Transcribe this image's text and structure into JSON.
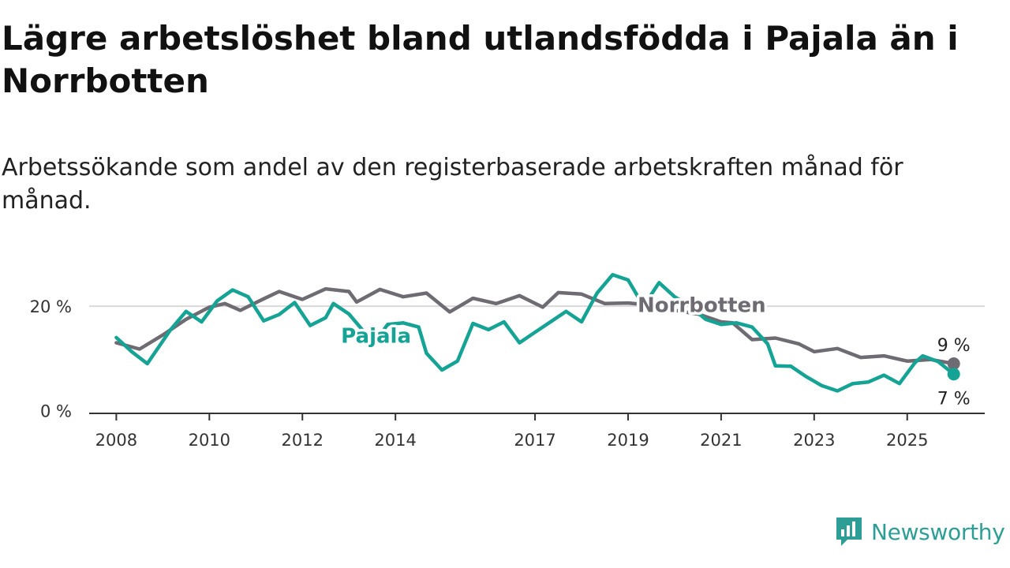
{
  "title": "Lägre arbetslöshet bland utlandsfödda i Pajala än i Norrbotten",
  "subtitle": "Arbetssökande som andel av den registerbaserade arbetskraften månad för månad.",
  "brand": {
    "name": "Newsworthy",
    "icon": "newsworthy-logo-icon",
    "color": "#2d9e96"
  },
  "chart_data": {
    "type": "line",
    "xlabel": "",
    "ylabel": "",
    "x_ticks": [
      "2008",
      "2010",
      "2012",
      "2014",
      "2017",
      "2019",
      "2021",
      "2023",
      "2025"
    ],
    "y_ticks": [
      {
        "value": 0,
        "label": "0 %"
      },
      {
        "value": 20,
        "label": "20 %"
      }
    ],
    "ylim": [
      -0.5,
      26.5
    ],
    "xlim": [
      "2007-06",
      "2026-09"
    ],
    "grid": "horizontal at 20",
    "series": [
      {
        "name": "Norrbotten",
        "color": "#6e6b73",
        "end_label": "9 %",
        "points": [
          [
            "2008-01",
            13.0
          ],
          [
            "2008-07",
            11.8
          ],
          [
            "2009-01",
            14.5
          ],
          [
            "2009-07",
            17.5
          ],
          [
            "2010-01",
            19.8
          ],
          [
            "2010-05",
            20.5
          ],
          [
            "2010-09",
            19.2
          ],
          [
            "2011-03",
            21.4
          ],
          [
            "2011-07",
            22.8
          ],
          [
            "2012-01",
            21.3
          ],
          [
            "2012-07",
            23.3
          ],
          [
            "2013-01",
            22.8
          ],
          [
            "2013-03",
            20.8
          ],
          [
            "2013-09",
            23.2
          ],
          [
            "2014-03",
            21.8
          ],
          [
            "2014-09",
            22.5
          ],
          [
            "2015-03",
            18.9
          ],
          [
            "2015-09",
            21.5
          ],
          [
            "2016-03",
            20.5
          ],
          [
            "2016-09",
            22.0
          ],
          [
            "2017-03",
            19.8
          ],
          [
            "2017-07",
            22.6
          ],
          [
            "2018-01",
            22.3
          ],
          [
            "2018-07",
            20.5
          ],
          [
            "2019-01",
            20.6
          ],
          [
            "2019-07",
            20.2
          ],
          [
            "2020-01",
            19.2
          ],
          [
            "2020-07",
            18.5
          ],
          [
            "2021-01",
            17.0
          ],
          [
            "2021-04",
            16.8
          ],
          [
            "2021-09",
            13.6
          ],
          [
            "2022-03",
            13.9
          ],
          [
            "2022-09",
            12.8
          ],
          [
            "2023-01",
            11.3
          ],
          [
            "2023-07",
            11.9
          ],
          [
            "2024-01",
            10.2
          ],
          [
            "2024-07",
            10.5
          ],
          [
            "2025-01",
            9.5
          ],
          [
            "2025-07",
            9.8
          ],
          [
            "2026-01",
            9.0
          ]
        ]
      },
      {
        "name": "Pajala",
        "color": "#14a394",
        "end_label": "7 %",
        "points": [
          [
            "2008-01",
            14.0
          ],
          [
            "2008-05",
            11.3
          ],
          [
            "2008-09",
            9.0
          ],
          [
            "2009-03",
            15.5
          ],
          [
            "2009-07",
            19.0
          ],
          [
            "2009-11",
            17.0
          ],
          [
            "2010-03",
            21.0
          ],
          [
            "2010-07",
            23.1
          ],
          [
            "2010-11",
            21.8
          ],
          [
            "2011-03",
            17.2
          ],
          [
            "2011-07",
            18.4
          ],
          [
            "2011-11",
            20.7
          ],
          [
            "2012-03",
            16.3
          ],
          [
            "2012-07",
            17.8
          ],
          [
            "2012-09",
            20.5
          ],
          [
            "2013-01",
            18.5
          ],
          [
            "2013-05",
            15.0
          ],
          [
            "2013-09",
            14.5
          ],
          [
            "2013-11",
            16.5
          ],
          [
            "2014-03",
            16.8
          ],
          [
            "2014-07",
            16.0
          ],
          [
            "2014-09",
            11.0
          ],
          [
            "2015-01",
            7.8
          ],
          [
            "2015-05",
            9.5
          ],
          [
            "2015-09",
            16.7
          ],
          [
            "2016-01",
            15.5
          ],
          [
            "2016-05",
            17.0
          ],
          [
            "2016-09",
            13.0
          ],
          [
            "2017-01",
            15.0
          ],
          [
            "2017-05",
            17.0
          ],
          [
            "2017-09",
            19.0
          ],
          [
            "2018-01",
            17.0
          ],
          [
            "2018-05",
            22.5
          ],
          [
            "2018-09",
            26.0
          ],
          [
            "2019-01",
            25.0
          ],
          [
            "2019-05",
            20.0
          ],
          [
            "2019-09",
            24.5
          ],
          [
            "2020-01",
            21.8
          ],
          [
            "2020-05",
            20.0
          ],
          [
            "2020-09",
            17.5
          ],
          [
            "2021-01",
            16.5
          ],
          [
            "2021-05",
            16.8
          ],
          [
            "2021-09",
            16.0
          ],
          [
            "2022-01",
            12.8
          ],
          [
            "2022-03",
            8.6
          ],
          [
            "2022-07",
            8.5
          ],
          [
            "2022-11",
            6.5
          ],
          [
            "2023-03",
            4.8
          ],
          [
            "2023-07",
            3.8
          ],
          [
            "2023-11",
            5.2
          ],
          [
            "2024-03",
            5.5
          ],
          [
            "2024-07",
            6.8
          ],
          [
            "2024-11",
            5.2
          ],
          [
            "2025-03",
            9.2
          ],
          [
            "2025-05",
            10.5
          ],
          [
            "2025-09",
            9.4
          ],
          [
            "2026-01",
            7.0
          ]
        ]
      }
    ],
    "inline_labels": [
      {
        "text": "Norrbotten",
        "series": "Norrbotten",
        "at": [
          "2020-08",
          18.9
        ]
      },
      {
        "text": "Pajala",
        "series": "Pajala",
        "at": [
          "2013-08",
          13.0
        ]
      }
    ]
  }
}
